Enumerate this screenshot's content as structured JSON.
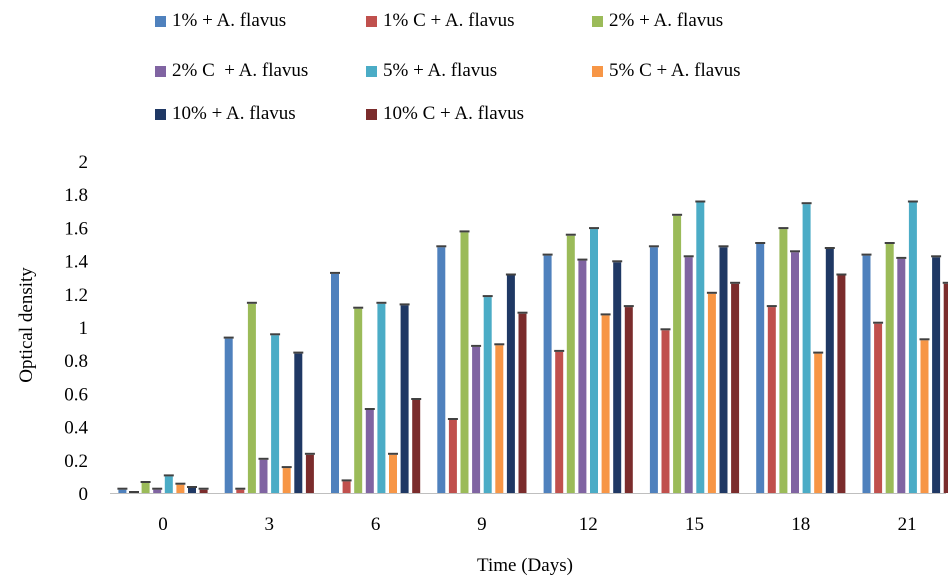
{
  "chart_data": {
    "type": "bar",
    "title": "",
    "xlabel": "Time (Days)",
    "ylabel": "Optical density",
    "ylim": [
      0,
      2
    ],
    "yticks": [
      "0",
      "0.2",
      "0.4",
      "0.6",
      "0.8",
      "1",
      "1.2",
      "1.4",
      "1.6",
      "1.8",
      "2"
    ],
    "categories": [
      "0",
      "3",
      "6",
      "9",
      "12",
      "15",
      "18",
      "21"
    ],
    "grid": false,
    "legend_position": "top",
    "series": [
      {
        "name": "1% + A. flavus",
        "color": "#4f81bd",
        "values": [
          0.02,
          0.93,
          1.32,
          1.48,
          1.43,
          1.48,
          1.5,
          1.43
        ]
      },
      {
        "name": "1% C + A. flavus",
        "color": "#c0504d",
        "values": [
          0.0,
          0.02,
          0.07,
          0.44,
          0.85,
          0.98,
          1.12,
          1.02
        ]
      },
      {
        "name": "2% + A. flavus",
        "color": "#9bbb59",
        "values": [
          0.06,
          1.14,
          1.11,
          1.57,
          1.55,
          1.67,
          1.59,
          1.5
        ]
      },
      {
        "name": "2% C  + A. flavus",
        "color": "#8064a2",
        "values": [
          0.02,
          0.2,
          0.5,
          0.88,
          1.4,
          1.42,
          1.45,
          1.41
        ]
      },
      {
        "name": "5% + A. flavus",
        "color": "#4bacc6",
        "values": [
          0.1,
          0.95,
          1.14,
          1.18,
          1.59,
          1.75,
          1.74,
          1.75
        ]
      },
      {
        "name": "5% C + A. flavus",
        "color": "#f79646",
        "values": [
          0.05,
          0.15,
          0.23,
          0.89,
          1.07,
          1.2,
          0.84,
          0.92
        ]
      },
      {
        "name": "10% + A. flavus",
        "color": "#1f3864",
        "values": [
          0.03,
          0.84,
          1.13,
          1.31,
          1.39,
          1.48,
          1.47,
          1.42
        ]
      },
      {
        "name": "10% C + A. flavus",
        "color": "#7b2c2c",
        "values": [
          0.02,
          0.23,
          0.56,
          1.08,
          1.12,
          1.26,
          1.31,
          1.26
        ]
      }
    ]
  }
}
